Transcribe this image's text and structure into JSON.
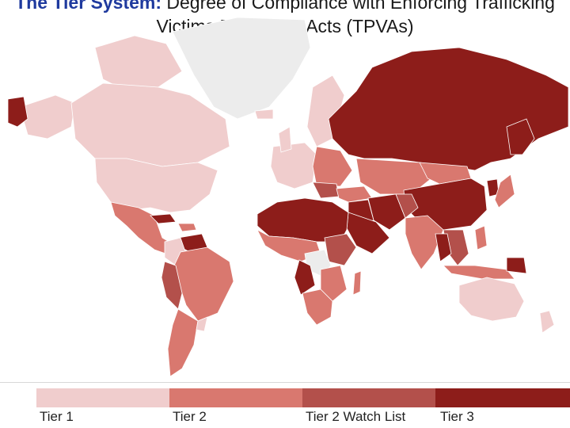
{
  "title": {
    "line1_prefix": "The Tier System:",
    "line1_rest": " Degree of Compliance with Enforcing Trafficking",
    "line2": "Victims Protection Acts (TPVAs)"
  },
  "legend": {
    "items": [
      {
        "label": "Tier 1",
        "color": "#f0cdcd"
      },
      {
        "label": "Tier 2",
        "color": "#d9786f"
      },
      {
        "label": "Tier 2 Watch List",
        "color": "#b3504b"
      },
      {
        "label": "Tier 3",
        "color": "#8d1d1a"
      }
    ]
  },
  "colors": {
    "no_data": "#ececec",
    "ocean": "#ffffff"
  }
}
